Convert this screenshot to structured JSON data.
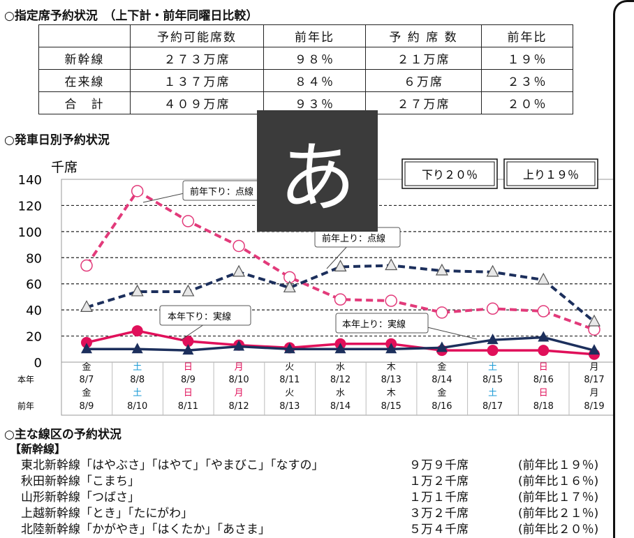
{
  "section1": {
    "title": "○指定席予約状況　（上下計・前年同曜日比較）",
    "headers": [
      "",
      "予約可能席数",
      "前年比",
      "予 約 席 数",
      "前年比"
    ],
    "rows": [
      [
        "新幹線",
        "２７３万席",
        "９８％",
        "２１万席",
        "１９％"
      ],
      [
        "在来線",
        "１３７万席",
        "８４％",
        "６万席",
        "２３％"
      ],
      [
        "合　計",
        "４０９万席",
        "９３％",
        "２７万席",
        "２０％"
      ]
    ]
  },
  "section2": {
    "title": "○発車日別予約状況",
    "unit": "千席",
    "box_down": "下り２０％",
    "box_up": "上り１９％",
    "row_label_this": "本年",
    "row_label_prev": "前年"
  },
  "chart_data": {
    "type": "line",
    "ylabel": "千席",
    "ylim": [
      0,
      140
    ],
    "yticks": [
      0,
      20,
      40,
      60,
      80,
      100,
      120,
      140
    ],
    "categories": [
      "8/7",
      "8/8",
      "8/9",
      "8/10",
      "8/11",
      "8/12",
      "8/13",
      "8/14",
      "8/15",
      "8/16",
      "8/17"
    ],
    "days_this_year": [
      "金",
      "土",
      "日",
      "月",
      "火",
      "水",
      "木",
      "金",
      "土",
      "日",
      "月"
    ],
    "dates_prev_year": [
      "8/9",
      "8/10",
      "8/11",
      "8/12",
      "8/13",
      "8/14",
      "8/15",
      "8/16",
      "8/17",
      "8/18",
      "8/19"
    ],
    "days_prev_year": [
      "金",
      "土",
      "日",
      "月",
      "火",
      "水",
      "木",
      "金",
      "土",
      "日",
      "月"
    ],
    "day_colors": [
      "#111111",
      "#1a9ad6",
      "#e0105a",
      "#e0105a",
      "#111111",
      "#111111",
      "#111111",
      "#111111",
      "#1a9ad6",
      "#e0105a",
      "#111111"
    ],
    "series": [
      {
        "name": "前年下り：点線",
        "style": "dashed",
        "marker": "circle-open",
        "color": "#e23a7a",
        "values": [
          74,
          131,
          108,
          89,
          65,
          48,
          47,
          38,
          41,
          39,
          25
        ]
      },
      {
        "name": "前年上り：点線",
        "style": "dashed",
        "marker": "triangle-open",
        "color": "#1c2f5c",
        "values": [
          42,
          54,
          54,
          69,
          57,
          73,
          74,
          70,
          69,
          63,
          31
        ]
      },
      {
        "name": "本年下り：実線",
        "style": "solid",
        "marker": "circle-filled",
        "color": "#e0105a",
        "values": [
          15,
          24,
          16,
          13,
          11,
          14,
          14,
          9,
          9,
          9,
          6
        ]
      },
      {
        "name": "本年上り：実線",
        "style": "solid",
        "marker": "triangle-filled",
        "color": "#1c2f5c",
        "values": [
          10,
          10,
          9,
          12,
          10,
          10,
          10,
          11,
          17,
          19,
          9
        ]
      }
    ],
    "grid": true
  },
  "section3": {
    "title": "○主な線区の予約状況",
    "subtitle": "【新幹線】",
    "rows": [
      {
        "name": "東北新幹線「はやぶさ」「はやて」「やまびこ」「なすの」",
        "seats": "９万９千席",
        "ratio": "(前年比１９％)"
      },
      {
        "name": "秋田新幹線「こまち」",
        "seats": "１万２千席",
        "ratio": "(前年比１６％)"
      },
      {
        "name": "山形新幹線「つばさ」",
        "seats": "１万１千席",
        "ratio": "(前年比１７％)"
      },
      {
        "name": "上越新幹線「とき」「たにがわ」",
        "seats": "３万２千席",
        "ratio": "(前年比２１％)"
      },
      {
        "name": "北陸新幹線「かがやき」「はくたか」「あさま」",
        "seats": "５万４千席",
        "ratio": "(前年比２０％)"
      }
    ]
  },
  "overlay": {
    "glyph": "あ"
  }
}
